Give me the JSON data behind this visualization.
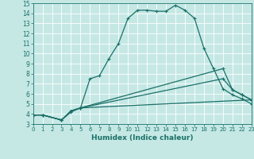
{
  "line1_x": [
    0,
    1,
    3,
    4,
    5,
    6,
    7,
    8,
    9,
    10,
    11,
    12,
    13,
    14,
    15,
    16,
    17,
    18,
    19,
    20,
    21,
    22,
    23
  ],
  "line1_y": [
    3.9,
    3.9,
    3.4,
    4.2,
    4.6,
    7.5,
    7.8,
    9.5,
    11.0,
    13.5,
    14.3,
    14.3,
    14.2,
    14.2,
    14.8,
    14.3,
    13.5,
    10.5,
    8.5,
    6.5,
    5.9,
    5.5,
    5.0
  ],
  "line2_x": [
    0,
    1,
    3,
    4,
    5,
    23
  ],
  "line2_y": [
    3.9,
    3.9,
    3.4,
    4.3,
    4.6,
    5.4
  ],
  "line3_x": [
    0,
    1,
    3,
    4,
    5,
    20,
    21,
    22,
    23
  ],
  "line3_y": [
    3.9,
    3.9,
    3.4,
    4.3,
    4.6,
    7.5,
    6.4,
    5.9,
    5.4
  ],
  "line4_x": [
    0,
    1,
    3,
    4,
    5,
    20,
    21,
    22,
    23
  ],
  "line4_y": [
    3.9,
    3.9,
    3.4,
    4.3,
    4.6,
    8.5,
    6.4,
    5.9,
    5.4
  ],
  "line_color": "#1a7068",
  "bg_color": "#c5e8e5",
  "grid_color": "#b8d8d5",
  "xlabel": "Humidex (Indice chaleur)",
  "ylim": [
    3,
    15
  ],
  "xlim": [
    0,
    23
  ],
  "yticks": [
    3,
    4,
    5,
    6,
    7,
    8,
    9,
    10,
    11,
    12,
    13,
    14,
    15
  ],
  "xticks": [
    0,
    1,
    2,
    3,
    4,
    5,
    6,
    7,
    8,
    9,
    10,
    11,
    12,
    13,
    14,
    15,
    16,
    17,
    18,
    19,
    20,
    21,
    22,
    23
  ],
  "marker": "+",
  "markersize": 3.5,
  "linewidth": 0.9
}
